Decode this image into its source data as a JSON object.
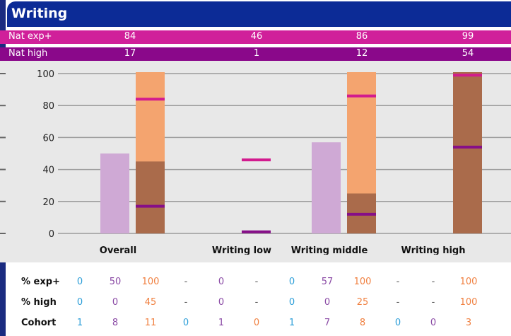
{
  "header": {
    "title": "Writing"
  },
  "bands": {
    "nat_exp": {
      "label": "Nat exp+",
      "values": [
        "84",
        "46",
        "86",
        "99"
      ]
    },
    "nat_high": {
      "label": "Nat high",
      "values": [
        "17",
        "1",
        "12",
        "54"
      ]
    }
  },
  "colors": {
    "header": "#0c2b96",
    "band_exp": "#d0209a",
    "band_high": "#8a088a",
    "bar_mid": "#cfa9d5",
    "bar_total": "#f4a46f",
    "bar_high": "#aa6b4b",
    "marker_exp": "#d21b8e",
    "marker_high": "#860f88",
    "cyan": "#2c9ed8",
    "purple": "#8a4aa5",
    "orange": "#f08040"
  },
  "chart_data": {
    "type": "bar",
    "categories": [
      "Overall",
      "Writing low",
      "Writing middle",
      "Writing high"
    ],
    "ylim": [
      0,
      100
    ],
    "yticks": [
      "0",
      "20",
      "40",
      "60",
      "80",
      "100"
    ],
    "grid": true,
    "series": [
      {
        "values": [
          50,
          null,
          57,
          null
        ]
      },
      {
        "values": [
          100,
          null,
          100,
          100
        ]
      },
      {
        "values": [
          45,
          null,
          25,
          100
        ]
      }
    ],
    "markers": {
      "nat_exp": [
        84,
        46,
        86,
        99
      ],
      "nat_high": [
        17,
        1,
        12,
        54
      ]
    }
  },
  "table": {
    "rows": [
      {
        "label": "% exp+",
        "cells": [
          "0",
          "50",
          "100",
          "-",
          "0",
          "-",
          "0",
          "57",
          "100",
          "-",
          "-",
          "100"
        ]
      },
      {
        "label": "% high",
        "cells": [
          "0",
          "0",
          "45",
          "-",
          "0",
          "-",
          "0",
          "0",
          "25",
          "-",
          "-",
          "100"
        ]
      },
      {
        "label": "Cohort",
        "cells": [
          "1",
          "8",
          "11",
          "0",
          "1",
          "0",
          "1",
          "7",
          "8",
          "0",
          "0",
          "3"
        ]
      }
    ],
    "cell_colors": [
      "cyan",
      "purple",
      "orange",
      "cyan",
      "purple",
      "orange",
      "cyan",
      "purple",
      "orange",
      "cyan",
      "purple",
      "orange"
    ],
    "dash_color": "#555555"
  }
}
